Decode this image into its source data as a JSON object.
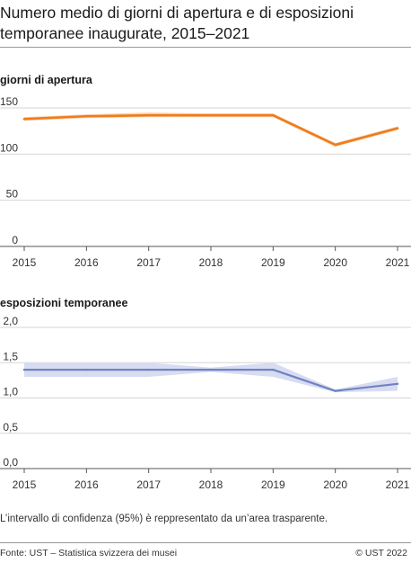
{
  "title": "Numero medio di giorni di apertura e di esposizioni temporanee inaugurate, 2015–2021",
  "note": "L’intervallo di confidenza (95%) è reppresentato da un’area trasparente.",
  "footer": {
    "source": "Fonte: UST – Statistica svizzera dei musei",
    "copyright": "© UST 2022"
  },
  "colors": {
    "orange": "#f07c1b",
    "orange_band": "#f7c9a0",
    "blue": "#6f82c4",
    "blue_band": "#d8dcf0"
  },
  "chart_data": [
    {
      "type": "line",
      "title": "giorni di apertura",
      "x": [
        "2015",
        "2016",
        "2017",
        "2018",
        "2019",
        "2020",
        "2021"
      ],
      "series": [
        {
          "values": [
            138,
            141,
            142,
            142,
            142,
            110,
            128
          ],
          "ci_low": [
            136,
            139,
            140,
            140,
            140,
            108,
            126
          ],
          "ci_high": [
            140,
            143,
            145,
            144,
            144,
            112,
            130
          ]
        }
      ],
      "ylim": [
        0,
        150
      ],
      "yticks": [
        0,
        50,
        100,
        150
      ],
      "ytick_labels": [
        "0",
        "50",
        "100",
        "150"
      ],
      "grid": true
    },
    {
      "type": "line",
      "title": "esposizioni temporanee",
      "x": [
        "2015",
        "2016",
        "2017",
        "2018",
        "2019",
        "2020",
        "2021"
      ],
      "series": [
        {
          "values": [
            1.4,
            1.4,
            1.4,
            1.4,
            1.4,
            1.1,
            1.2
          ],
          "ci_low": [
            1.3,
            1.3,
            1.3,
            1.37,
            1.3,
            1.08,
            1.1
          ],
          "ci_high": [
            1.5,
            1.5,
            1.5,
            1.43,
            1.5,
            1.12,
            1.3
          ]
        }
      ],
      "ylim": [
        0,
        2.0
      ],
      "yticks": [
        0,
        0.5,
        1.0,
        1.5,
        2.0
      ],
      "ytick_labels": [
        "0,0",
        "0,5",
        "1,0",
        "1,5",
        "2,0"
      ],
      "grid": true
    }
  ]
}
